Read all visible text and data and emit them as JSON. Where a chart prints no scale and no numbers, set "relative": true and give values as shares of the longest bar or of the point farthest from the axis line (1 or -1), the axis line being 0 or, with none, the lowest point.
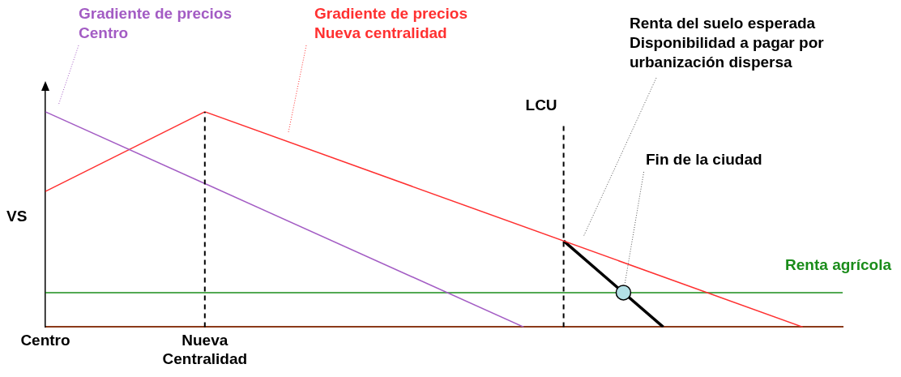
{
  "chart_data": {
    "type": "line",
    "relative": true,
    "ylabel": "VS",
    "categories": [
      "Centro",
      null,
      null,
      null,
      null,
      null,
      null,
      null,
      "Nueva Centralidad",
      null,
      null,
      null,
      null,
      null,
      null,
      null,
      null,
      null,
      null,
      null,
      null,
      null,
      null,
      null,
      null,
      null,
      null,
      null,
      null,
      null,
      null,
      null,
      null,
      null,
      null,
      null,
      null,
      null,
      null,
      null,
      null
    ],
    "series": [
      {
        "name": "Gradiente de precios\nCentro",
        "color": "#a35cc4",
        "values": [
          1,
          null,
          null,
          null,
          null,
          null,
          null,
          null,
          null,
          null,
          null,
          null,
          null,
          null,
          null,
          null,
          null,
          null,
          null,
          null,
          null,
          null,
          null,
          null,
          0,
          null,
          null,
          null,
          null,
          null,
          null,
          null,
          null,
          null,
          null,
          null,
          null,
          null,
          null,
          null,
          null
        ]
      },
      {
        "name": "Gradiente de precios\nNueva centralidad",
        "color": "#ff3030",
        "values": [
          0.63,
          null,
          null,
          null,
          null,
          null,
          null,
          null,
          1,
          null,
          null,
          null,
          null,
          null,
          null,
          null,
          null,
          null,
          null,
          null,
          null,
          null,
          null,
          null,
          null,
          null,
          null,
          null,
          null,
          null,
          null,
          null,
          null,
          null,
          null,
          null,
          null,
          null,
          0,
          null,
          null
        ]
      },
      {
        "name": "Renta del suelo esperada\nDisponibilidad a pagar por\nurbanización dispersa",
        "color": "#000000",
        "values": [
          null,
          null,
          null,
          null,
          null,
          null,
          null,
          null,
          null,
          null,
          null,
          null,
          null,
          null,
          null,
          null,
          null,
          null,
          null,
          null,
          null,
          null,
          null,
          null,
          null,
          null,
          0.4,
          null,
          null,
          null,
          null,
          0,
          null,
          null,
          null,
          null,
          null,
          null,
          null,
          null,
          null
        ]
      },
      {
        "name": "Renta agrícola",
        "color": "#1a8c1a",
        "values": [
          0.16,
          null,
          null,
          null,
          null,
          null,
          null,
          null,
          null,
          null,
          null,
          null,
          null,
          null,
          null,
          null,
          null,
          null,
          null,
          null,
          null,
          null,
          null,
          null,
          null,
          null,
          null,
          null,
          null,
          null,
          null,
          null,
          null,
          null,
          null,
          null,
          null,
          null,
          null,
          null,
          0.16
        ]
      },
      {
        "type": "scatter",
        "color": "#b3e0e6",
        "marker": "circle",
        "values": [
          null,
          null,
          null,
          null,
          null,
          null,
          null,
          null,
          null,
          null,
          null,
          null,
          null,
          null,
          null,
          null,
          null,
          null,
          null,
          null,
          null,
          null,
          null,
          null,
          null,
          null,
          null,
          null,
          null,
          0.16,
          null,
          null,
          null,
          null,
          null,
          null,
          null,
          null,
          null,
          null,
          null
        ]
      }
    ],
    "ref_lines": [
      {
        "axis": "x",
        "value": "Nueva Centralidad",
        "label": null,
        "line_style": "dashed",
        "color": "#000000"
      }
    ],
    "annotations": [
      "LCU",
      "Fin de la ciudad"
    ],
    "marker": "none",
    "line_style": "solid",
    "grid": false,
    "legend": false
  }
}
